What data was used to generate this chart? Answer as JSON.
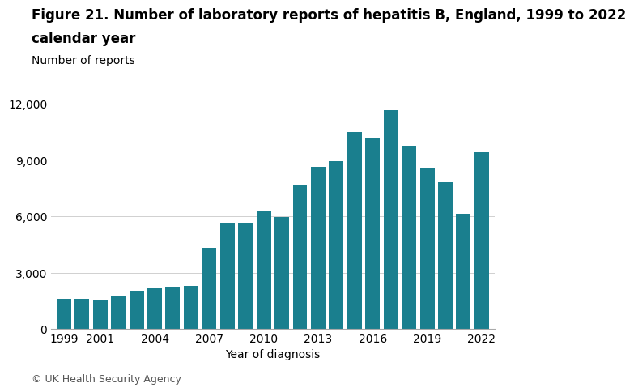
{
  "title_line1": "Figure 21. Number of laboratory reports of hepatitis B, England, 1999 to 2022",
  "title_line2": "calendar year",
  "ylabel": "Number of reports",
  "xlabel": "Year of diagnosis",
  "footnote": "© UK Health Security Agency",
  "bar_color": "#1a7f8e",
  "background_color": "#ffffff",
  "years": [
    1999,
    2000,
    2001,
    2002,
    2003,
    2004,
    2005,
    2006,
    2007,
    2008,
    2009,
    2010,
    2011,
    2012,
    2013,
    2014,
    2015,
    2016,
    2017,
    2018,
    2019,
    2020,
    2021,
    2022
  ],
  "values": [
    1600,
    1620,
    1500,
    1780,
    2050,
    2150,
    2250,
    2300,
    4300,
    5650,
    5650,
    6300,
    5950,
    7650,
    8650,
    8950,
    10500,
    10150,
    11650,
    9750,
    8600,
    7800,
    6150,
    9400
  ],
  "yticks": [
    0,
    3000,
    6000,
    9000,
    12000
  ],
  "xtick_labels": [
    "1999",
    "2001",
    "2004",
    "2007",
    "2010",
    "2013",
    "2016",
    "2019",
    "2022"
  ],
  "xtick_positions": [
    1999,
    2001,
    2004,
    2007,
    2010,
    2013,
    2016,
    2019,
    2022
  ],
  "ylim": [
    0,
    12500
  ],
  "grid_color": "#d0d0d0",
  "title_fontsize": 12,
  "label_fontsize": 10,
  "tick_fontsize": 10,
  "footnote_fontsize": 9
}
